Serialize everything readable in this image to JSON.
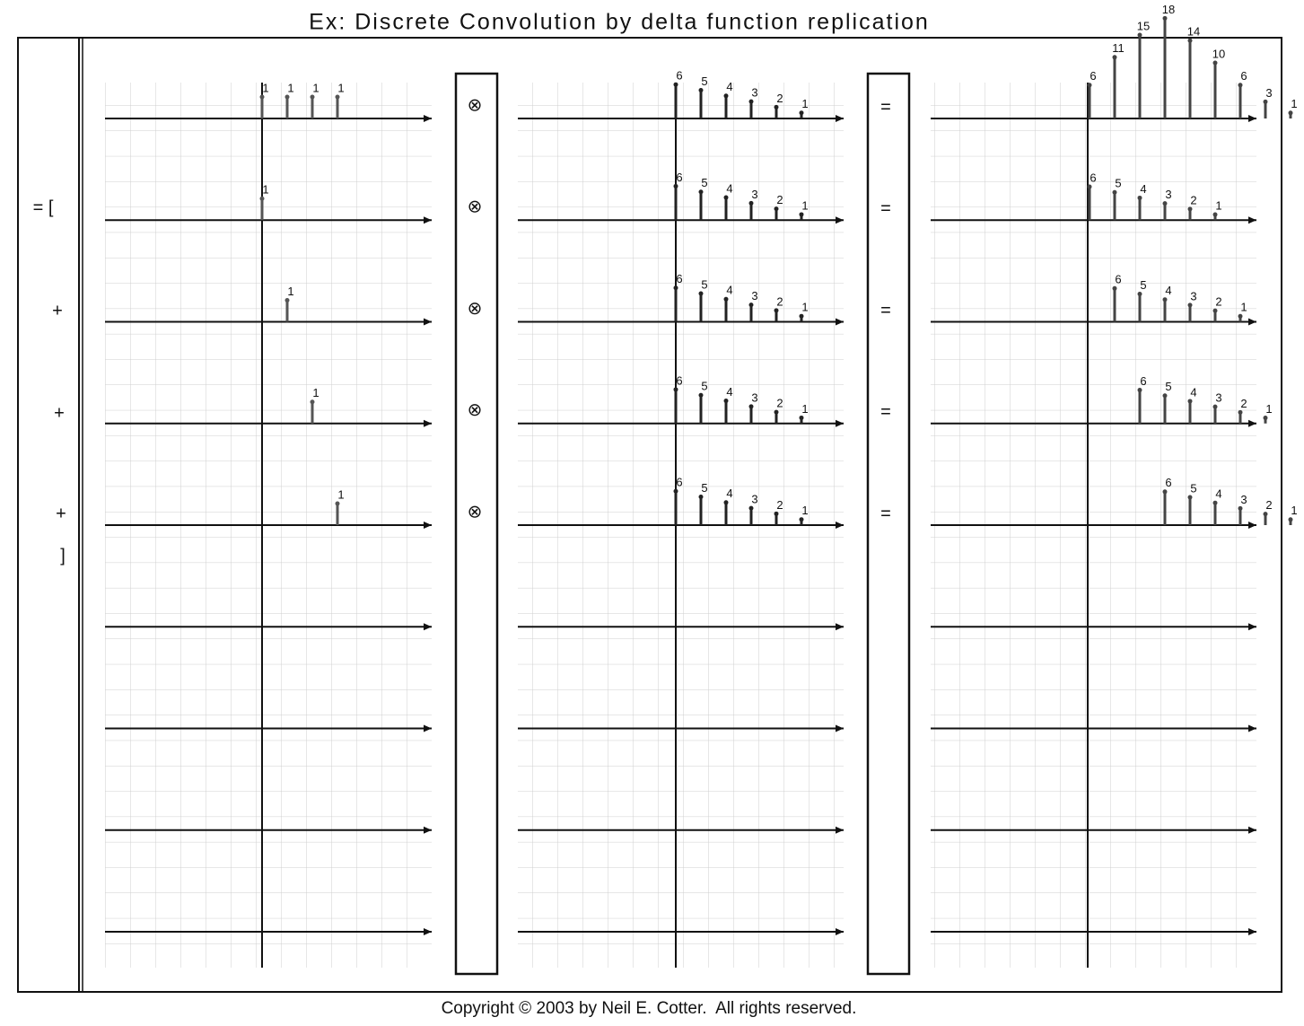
{
  "title": "Ex: Discrete Convolution by delta function replication",
  "copyright": "Copyright © 2003 by Neil E. Cotter.  All rights reserved.",
  "left_symbols": [
    "= [",
    "+",
    "+",
    "+",
    "]"
  ],
  "rows": [
    {
      "input": [
        1,
        1,
        1,
        1
      ],
      "operator": "⊗",
      "kernel": [
        6,
        5,
        4,
        3,
        2,
        1
      ],
      "equals": "=",
      "output": [
        6,
        11,
        15,
        18,
        14,
        10,
        6,
        3,
        1
      ]
    },
    {
      "input": [
        1
      ],
      "operator": "⊗",
      "kernel": [
        6,
        5,
        4,
        3,
        2,
        1
      ],
      "equals": "=",
      "output": [
        6,
        5,
        4,
        3,
        2,
        1
      ]
    },
    {
      "input": [
        null,
        1
      ],
      "operator": "⊗",
      "kernel": [
        6,
        5,
        4,
        3,
        2,
        1
      ],
      "equals": "=",
      "output": [
        null,
        6,
        5,
        4,
        3,
        2,
        1
      ]
    },
    {
      "input": [
        null,
        null,
        1
      ],
      "operator": "⊗",
      "kernel": [
        6,
        5,
        4,
        3,
        2,
        1
      ],
      "equals": "=",
      "output": [
        null,
        null,
        6,
        5,
        4,
        3,
        2,
        1
      ]
    },
    {
      "input": [
        null,
        null,
        null,
        1
      ],
      "operator": "⊗",
      "kernel": [
        6,
        5,
        4,
        3,
        2,
        1
      ],
      "equals": "=",
      "output": [
        null,
        null,
        null,
        6,
        5,
        4,
        3,
        2,
        1
      ]
    }
  ]
}
